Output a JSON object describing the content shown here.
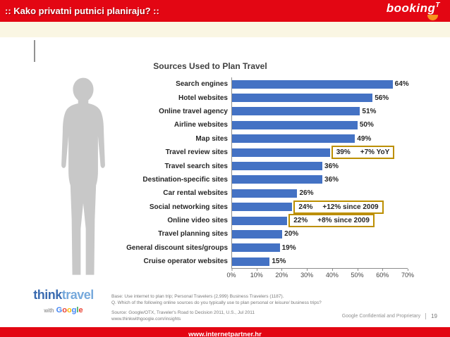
{
  "header": {
    "title": ":: Kako privatni putnici planiraju? ::",
    "logo_main": "booking",
    "logo_suffix": "T",
    "bar_color": "#E30613",
    "logo_accent_color": "#F7941D"
  },
  "chart_data": {
    "type": "bar",
    "orientation": "horizontal",
    "title": "Sources Used to Plan Travel",
    "categories": [
      "Search engines",
      "Hotel websites",
      "Online travel agency",
      "Airline websites",
      "Map sites",
      "Travel review sites",
      "Travel search sites",
      "Destination-specific sites",
      "Car rental websites",
      "Social networking sites",
      "Online video sites",
      "Travel planning sites",
      "General discount sites/groups",
      "Cruise operator websites"
    ],
    "values": [
      64,
      56,
      51,
      50,
      49,
      39,
      36,
      36,
      26,
      24,
      22,
      20,
      19,
      15
    ],
    "value_suffix": "%",
    "xlim": [
      0,
      70
    ],
    "xticks": [
      "0%",
      "10%",
      "20%",
      "30%",
      "40%",
      "50%",
      "60%",
      "70%"
    ],
    "bar_color": "#4472C4",
    "grid": false,
    "legend": false,
    "annotations": [
      {
        "category": "Travel review sites",
        "text": "+7% YoY"
      },
      {
        "category": "Social networking sites",
        "text": "+12% since 2009"
      },
      {
        "category": "Online video sites",
        "text": "+8% since 2009"
      }
    ],
    "annotation_border_color": "#BC8F00"
  },
  "footnotes": {
    "base": "Base:   Use internet to plan trip; Personal Travelers (2,999) Business Travelers (1187).",
    "question": "Q.   Which of the following online sources do you typically use to plan personal or leisure/ business trips?",
    "source": "Source: Google/OTX, Traveler's Road to Decision 2011, U.S., Jul 2011",
    "source_url": "www.thinkwithgoogle.com/insights"
  },
  "brand": {
    "think": "think",
    "travel": "travel",
    "with": "with",
    "google_letters": [
      {
        "ch": "G",
        "c": "#4285F4"
      },
      {
        "ch": "o",
        "c": "#EA4335"
      },
      {
        "ch": "o",
        "c": "#FBBC05"
      },
      {
        "ch": "g",
        "c": "#4285F4"
      },
      {
        "ch": "l",
        "c": "#34A853"
      },
      {
        "ch": "e",
        "c": "#EA4335"
      }
    ]
  },
  "confidential": {
    "text": "Google Confidential and Proprietary",
    "page": "19"
  },
  "footer": {
    "url": "www.internetpartner.hr"
  }
}
